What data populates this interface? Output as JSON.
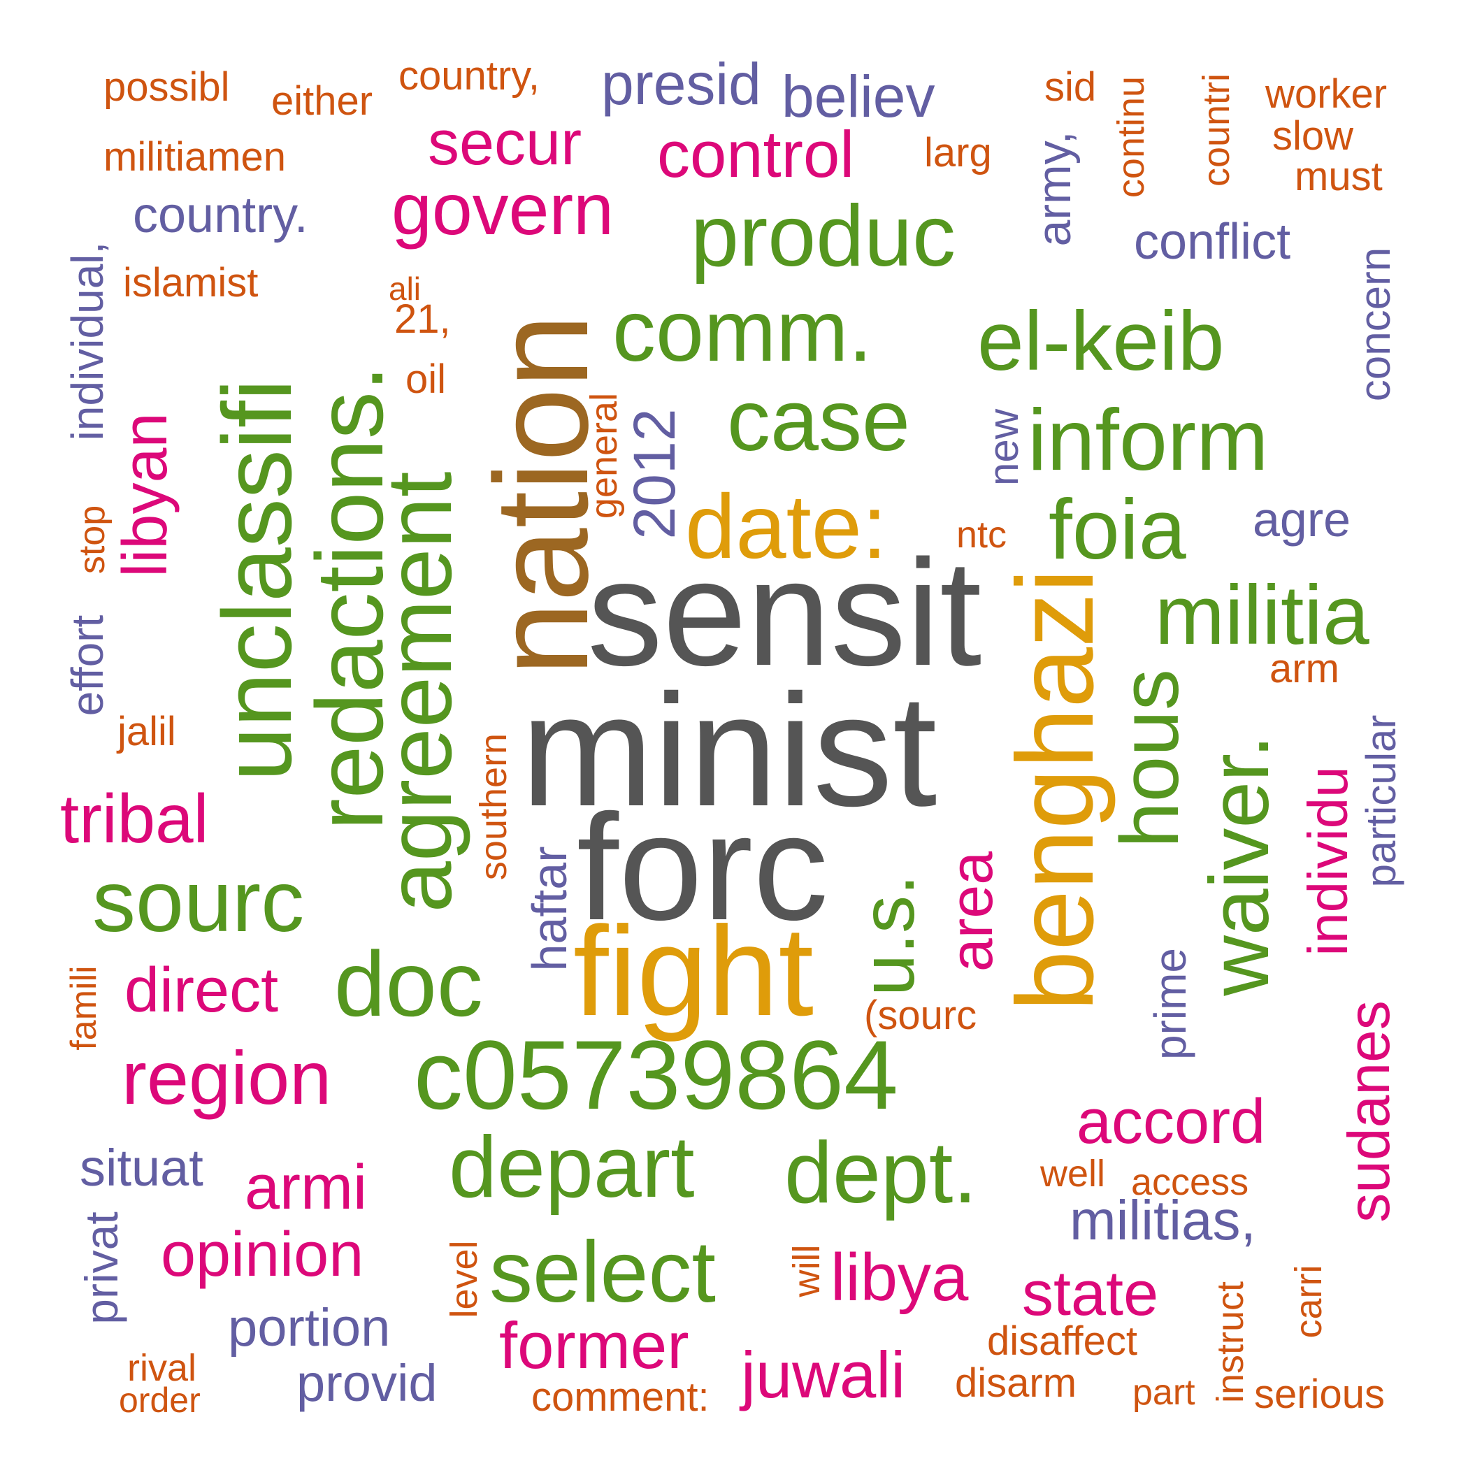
{
  "palette": {
    "grey": "#555555",
    "green": "#55961f",
    "orange": "#cf5410",
    "purple": "#625ea2",
    "pink": "#dc0879",
    "gold": "#df9c0a",
    "brown": "#9c6722"
  },
  "words": {
    "minist": "minist",
    "sensit": "sensit",
    "forc": "forc",
    "nation": "nation",
    "fight": "fight",
    "benghazi": "benghazi",
    "date": "date:",
    "c05739864": "c05739864",
    "unclassifi": "unclassifi",
    "redactions": "redactions.",
    "agreement": "agreement",
    "produc": "produc",
    "comm": "comm.",
    "el_keib": "el-keib",
    "inform": "inform",
    "case": "case",
    "foia": "foia",
    "militia": "militia",
    "hous": "hous",
    "waiver": "waiver.",
    "us": "u.s.",
    "sourc": "sourc",
    "doc": "doc",
    "depart": "depart",
    "dept": "dept.",
    "select": "select",
    "govern": "govern",
    "control": "control",
    "secur": "secur",
    "libyan": "libyan",
    "tribal": "tribal",
    "direct": "direct",
    "region": "region",
    "armi": "armi",
    "opinion": "opinion",
    "former": "former",
    "libya": "libya",
    "juwali": "juwali",
    "state": "state",
    "accord": "accord",
    "sudanes": "sudanes",
    "individu": "individu",
    "area": "area",
    "presid": "presid",
    "believ": "believ",
    "country_dot": "country.",
    "individual": "individual,",
    "effort": "effort",
    "stop": "stop",
    "army": "army,",
    "conflict": "conflict",
    "concern": "concern",
    "y2012": "2012",
    "new": "new",
    "agre": "agre",
    "particular": "particular",
    "haftar": "haftar",
    "prime": "prime",
    "militias": "militias,",
    "situat": "situat",
    "privat": "privat",
    "portion": "portion",
    "provid": "provid",
    "possibl": "possibl",
    "either": "either",
    "country_comma": "country,",
    "militiamen": "militiamen",
    "sid": "sid",
    "continu": "continu",
    "countri": "countri",
    "worker": "worker",
    "slow": "slow",
    "must": "must",
    "larg": "larg",
    "islamist": "islamist",
    "ali": "ali",
    "n21": "21,",
    "oil": "oil",
    "general": "general",
    "ntc": "ntc",
    "arm": "arm",
    "jalil": "jalil",
    "southern": "southern",
    "famili": "famili",
    "sourc_paren": "(sourc",
    "well": "well",
    "access": "access",
    "level": "level",
    "will": "will",
    "instruct": "instruct",
    "carri": "carri",
    "disaffect": "disaffect",
    "disarm": "disarm",
    "part": "part",
    "serious": "serious",
    "rival": "rival",
    "order": "order",
    "comment": "comment:"
  }
}
